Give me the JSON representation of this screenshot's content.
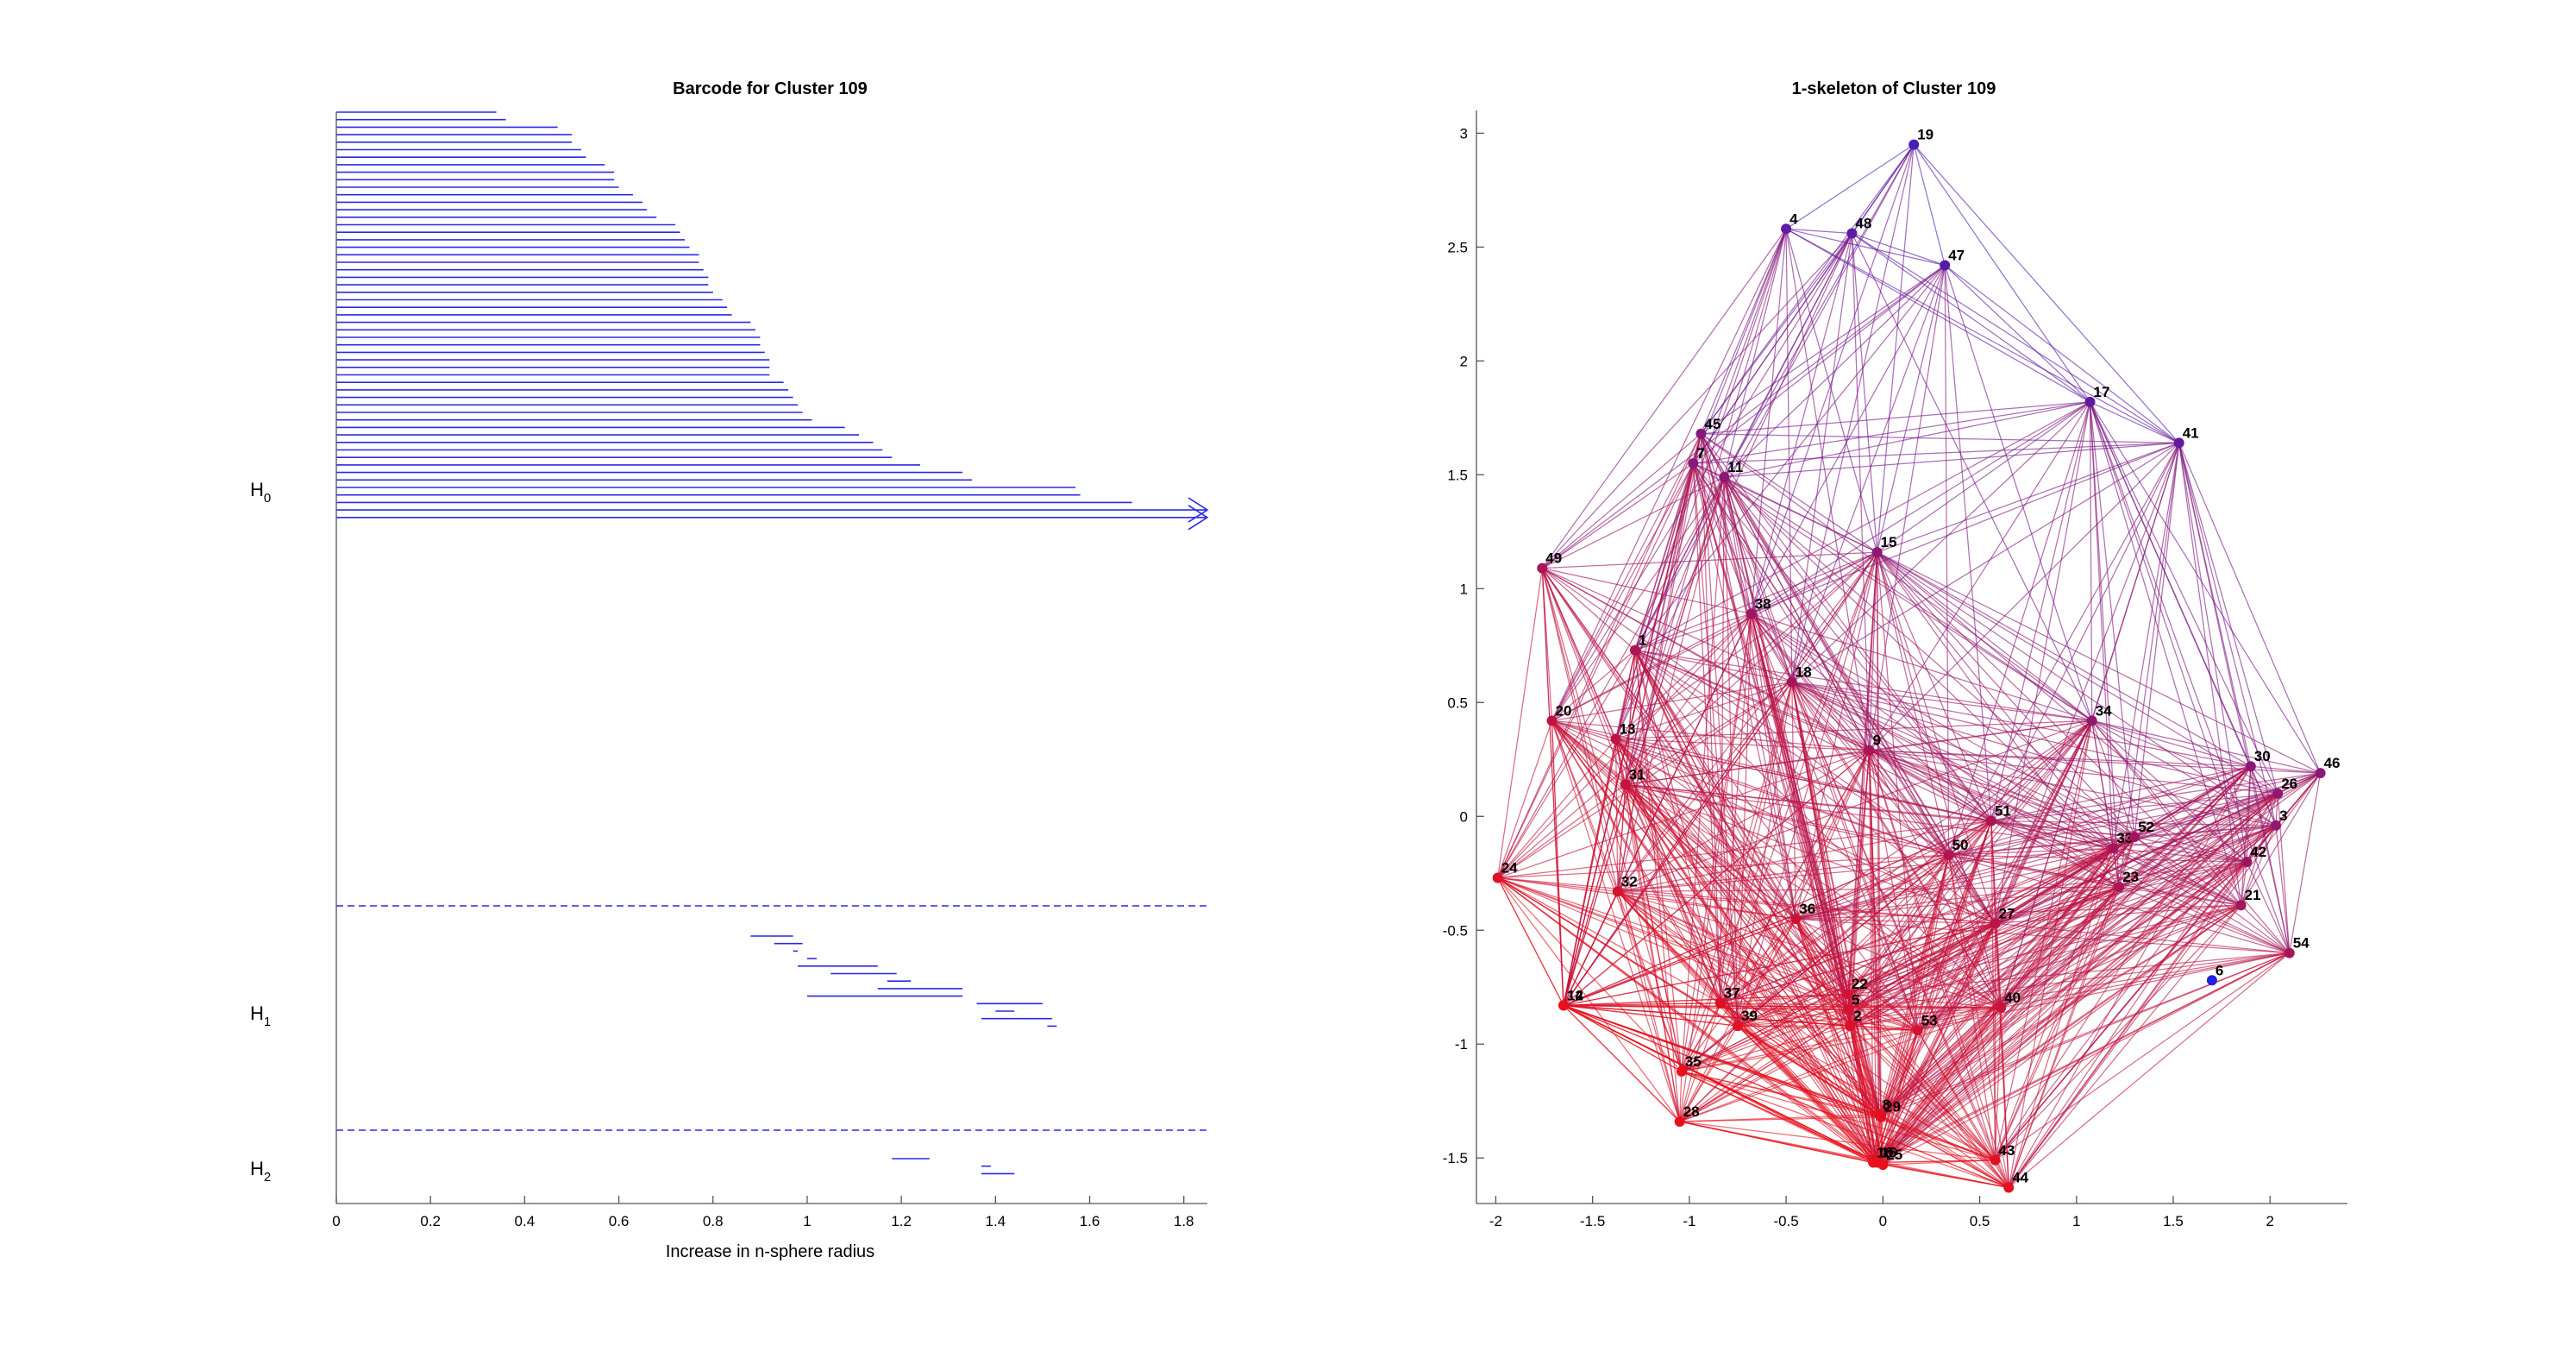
{
  "chart_data": [
    {
      "type": "barcode",
      "title": "Barcode for Cluster 109",
      "xlabel": "Increase in n-sphere radius",
      "xlim": [
        0,
        1.85
      ],
      "xticks": [
        "0",
        "0.2",
        "0.4",
        "0.6",
        "0.8",
        "1",
        "1.2",
        "1.4",
        "1.6",
        "1.8"
      ],
      "bar_color": "#2a2ae6",
      "groups": [
        {
          "label": "H",
          "sub": "0",
          "bars": [
            [
              0,
              0.34
            ],
            [
              0,
              0.36
            ],
            [
              0,
              0.47
            ],
            [
              0,
              0.5
            ],
            [
              0,
              0.5
            ],
            [
              0,
              0.52
            ],
            [
              0,
              0.53
            ],
            [
              0,
              0.57
            ],
            [
              0,
              0.59
            ],
            [
              0,
              0.59
            ],
            [
              0,
              0.6
            ],
            [
              0,
              0.63
            ],
            [
              0,
              0.65
            ],
            [
              0,
              0.66
            ],
            [
              0,
              0.68
            ],
            [
              0,
              0.72
            ],
            [
              0,
              0.73
            ],
            [
              0,
              0.74
            ],
            [
              0,
              0.75
            ],
            [
              0,
              0.77
            ],
            [
              0,
              0.77
            ],
            [
              0,
              0.78
            ],
            [
              0,
              0.79
            ],
            [
              0,
              0.79
            ],
            [
              0,
              0.8
            ],
            [
              0,
              0.82
            ],
            [
              0,
              0.83
            ],
            [
              0,
              0.84
            ],
            [
              0,
              0.88
            ],
            [
              0,
              0.89
            ],
            [
              0,
              0.9
            ],
            [
              0,
              0.9
            ],
            [
              0,
              0.91
            ],
            [
              0,
              0.92
            ],
            [
              0,
              0.92
            ],
            [
              0,
              0.92
            ],
            [
              0,
              0.95
            ],
            [
              0,
              0.96
            ],
            [
              0,
              0.97
            ],
            [
              0,
              0.98
            ],
            [
              0,
              0.99
            ],
            [
              0,
              1.01
            ],
            [
              0,
              1.08
            ],
            [
              0,
              1.11
            ],
            [
              0,
              1.14
            ],
            [
              0,
              1.16
            ],
            [
              0,
              1.18
            ],
            [
              0,
              1.24
            ],
            [
              0,
              1.33
            ],
            [
              0,
              1.35
            ],
            [
              0,
              1.57
            ],
            [
              0,
              1.58
            ],
            [
              0,
              1.69
            ],
            [
              0,
              1.85
            ],
            [
              0,
              1.85
            ]
          ],
          "infinite_count": 2
        },
        {
          "label": "H",
          "sub": "1",
          "bars": [
            [
              0.88,
              0.97
            ],
            [
              0.93,
              0.99
            ],
            [
              0.97,
              0.98
            ],
            [
              1.0,
              1.02
            ],
            [
              0.98,
              1.15
            ],
            [
              1.05,
              1.19
            ],
            [
              1.17,
              1.22
            ],
            [
              1.15,
              1.33
            ],
            [
              1.0,
              1.33
            ],
            [
              1.36,
              1.5
            ],
            [
              1.4,
              1.44
            ],
            [
              1.37,
              1.52
            ],
            [
              1.51,
              1.53
            ]
          ]
        },
        {
          "label": "H",
          "sub": "2",
          "bars": [
            [
              1.18,
              1.26
            ],
            [
              1.37,
              1.39
            ],
            [
              1.37,
              1.44
            ]
          ]
        }
      ]
    },
    {
      "type": "network",
      "title": "1-skeleton of Cluster 109",
      "xlim": [
        -2.1,
        2.4
      ],
      "ylim": [
        -1.7,
        3.1
      ],
      "xticks": [
        -2,
        -1.5,
        -1,
        -0.5,
        0,
        0.5,
        1,
        1.5,
        2
      ],
      "xtick_labels": [
        "-2",
        "-1.5",
        "-1",
        "-0.5",
        "0",
        "0.5",
        "1",
        "1.5",
        "2"
      ],
      "yticks": [
        -1.5,
        -1,
        -0.5,
        0,
        0.5,
        1,
        1.5,
        2,
        2.5,
        3
      ],
      "ytick_labels": [
        "-1.5",
        "-1",
        "-0.5",
        "0",
        "0.5",
        "1",
        "1.5",
        "2",
        "2.5",
        "3"
      ],
      "colors": {
        "low": "#2020e0",
        "high": "#e8101a"
      },
      "nodes": [
        {
          "id": "1",
          "x": -1.28,
          "y": 0.73
        },
        {
          "id": "2",
          "x": -0.17,
          "y": -0.92
        },
        {
          "id": "3",
          "x": 2.03,
          "y": -0.04
        },
        {
          "id": "4",
          "x": -0.5,
          "y": 2.58
        },
        {
          "id": "5",
          "x": -0.18,
          "y": -0.85
        },
        {
          "id": "6",
          "x": 1.7,
          "y": -0.72
        },
        {
          "id": "7",
          "x": -0.98,
          "y": 1.55
        },
        {
          "id": "8",
          "x": -0.02,
          "y": -1.31
        },
        {
          "id": "9",
          "x": -0.07,
          "y": 0.29
        },
        {
          "id": "10",
          "x": -0.05,
          "y": -1.52
        },
        {
          "id": "11",
          "x": -0.82,
          "y": 1.49
        },
        {
          "id": "12",
          "x": -1.65,
          "y": -0.83
        },
        {
          "id": "13",
          "x": -1.38,
          "y": 0.34
        },
        {
          "id": "14",
          "x": -1.65,
          "y": -0.83
        },
        {
          "id": "15",
          "x": -0.03,
          "y": 1.16
        },
        {
          "id": "16",
          "x": -0.03,
          "y": -1.52
        },
        {
          "id": "17",
          "x": 1.07,
          "y": 1.82
        },
        {
          "id": "18",
          "x": -0.47,
          "y": 0.59
        },
        {
          "id": "19",
          "x": 0.16,
          "y": 2.95
        },
        {
          "id": "20",
          "x": -1.71,
          "y": 0.42
        },
        {
          "id": "21",
          "x": 1.85,
          "y": -0.39
        },
        {
          "id": "22",
          "x": -0.18,
          "y": -0.78
        },
        {
          "id": "23",
          "x": 1.22,
          "y": -0.31
        },
        {
          "id": "24",
          "x": -1.99,
          "y": -0.27
        },
        {
          "id": "25",
          "x": 0.0,
          "y": -1.53
        },
        {
          "id": "26",
          "x": 2.04,
          "y": 0.1
        },
        {
          "id": "27",
          "x": 0.58,
          "y": -0.47
        },
        {
          "id": "28",
          "x": -1.05,
          "y": -1.34
        },
        {
          "id": "29",
          "x": -0.01,
          "y": -1.32
        },
        {
          "id": "30",
          "x": 1.9,
          "y": 0.22
        },
        {
          "id": "31",
          "x": -1.33,
          "y": 0.14
        },
        {
          "id": "32",
          "x": -1.37,
          "y": -0.33
        },
        {
          "id": "33",
          "x": 1.19,
          "y": -0.14
        },
        {
          "id": "34",
          "x": 1.08,
          "y": 0.42
        },
        {
          "id": "35",
          "x": -1.04,
          "y": -1.12
        },
        {
          "id": "36",
          "x": -0.45,
          "y": -0.45
        },
        {
          "id": "37",
          "x": -0.84,
          "y": -0.82
        },
        {
          "id": "38",
          "x": -0.68,
          "y": 0.89
        },
        {
          "id": "39",
          "x": -0.75,
          "y": -0.92
        },
        {
          "id": "40",
          "x": 0.61,
          "y": -0.84
        },
        {
          "id": "41",
          "x": 1.53,
          "y": 1.64
        },
        {
          "id": "42",
          "x": 1.88,
          "y": -0.2
        },
        {
          "id": "43",
          "x": 0.58,
          "y": -1.51
        },
        {
          "id": "44",
          "x": 0.65,
          "y": -1.63
        },
        {
          "id": "45",
          "x": -0.94,
          "y": 1.68
        },
        {
          "id": "46",
          "x": 2.26,
          "y": 0.19
        },
        {
          "id": "47",
          "x": 0.32,
          "y": 2.42
        },
        {
          "id": "48",
          "x": -0.16,
          "y": 2.56
        },
        {
          "id": "49",
          "x": -1.76,
          "y": 1.09
        },
        {
          "id": "50",
          "x": 0.34,
          "y": -0.17
        },
        {
          "id": "51",
          "x": 0.56,
          "y": -0.02
        },
        {
          "id": "52",
          "x": 1.3,
          "y": -0.09
        },
        {
          "id": "53",
          "x": 0.18,
          "y": -0.94
        },
        {
          "id": "54",
          "x": 2.1,
          "y": -0.6
        }
      ]
    }
  ]
}
